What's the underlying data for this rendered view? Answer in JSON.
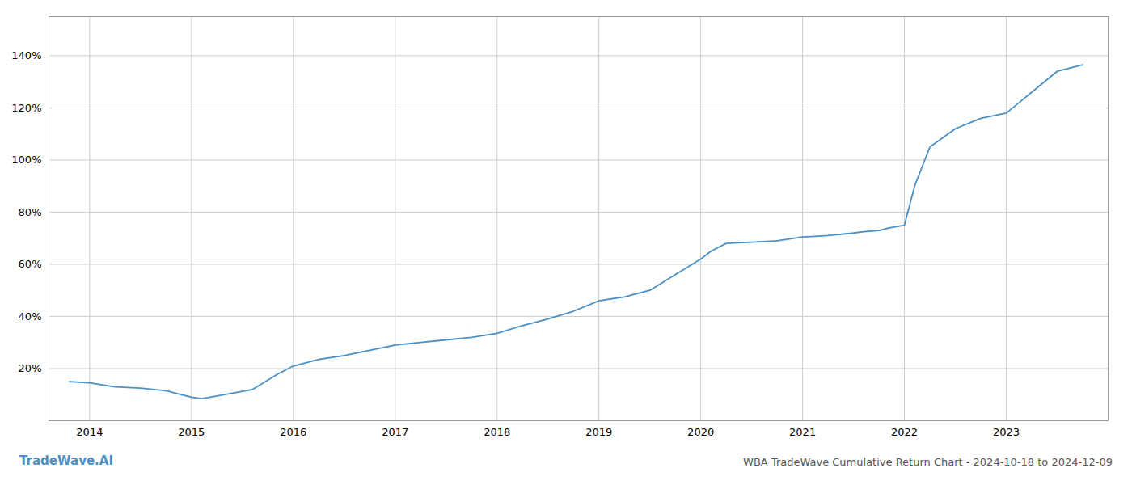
{
  "chart_data": {
    "type": "line",
    "title": "WBA TradeWave Cumulative Return Chart - 2024-10-18 to 2024-12-09",
    "annotations": [
      "TradeWave.AI"
    ],
    "x": [
      2013.8,
      2014.0,
      2014.25,
      2014.5,
      2014.75,
      2015.0,
      2015.1,
      2015.25,
      2015.6,
      2015.85,
      2016.0,
      2016.25,
      2016.5,
      2016.75,
      2017.0,
      2017.25,
      2017.5,
      2017.75,
      2018.0,
      2018.25,
      2018.5,
      2018.75,
      2019.0,
      2019.25,
      2019.5,
      2019.75,
      2020.0,
      2020.1,
      2020.25,
      2020.5,
      2020.75,
      2021.0,
      2021.25,
      2021.5,
      2021.6,
      2021.75,
      2021.85,
      2022.0,
      2022.1,
      2022.25,
      2022.5,
      2022.75,
      2023.0,
      2023.25,
      2023.5,
      2023.75
    ],
    "values": [
      15.0,
      14.5,
      13.0,
      12.5,
      11.5,
      9.0,
      8.5,
      9.5,
      12.0,
      18.0,
      21.0,
      23.5,
      25.0,
      27.0,
      29.0,
      30.0,
      31.0,
      32.0,
      33.5,
      36.5,
      39.0,
      42.0,
      46.0,
      47.5,
      50.0,
      56.0,
      62.0,
      65.0,
      68.0,
      68.5,
      69.0,
      70.5,
      71.0,
      72.0,
      72.5,
      73.0,
      74.0,
      75.0,
      90.0,
      105.0,
      112.0,
      116.0,
      118.0,
      126.0,
      134.0,
      136.5
    ],
    "color": "#4a90c4",
    "xlim": [
      2013.6,
      2024.0
    ],
    "ylim": [
      0,
      155
    ],
    "xticks": [
      2014,
      2015,
      2016,
      2017,
      2018,
      2019,
      2020,
      2021,
      2022,
      2023
    ],
    "yticks": [
      {
        "value": 20,
        "label": "20%"
      },
      {
        "value": 40,
        "label": "40%"
      },
      {
        "value": 60,
        "label": "60%"
      },
      {
        "value": 80,
        "label": "80%"
      },
      {
        "value": 100,
        "label": "100%"
      },
      {
        "value": 120,
        "label": "120%"
      },
      {
        "value": 140,
        "label": "140%"
      }
    ],
    "grid": true
  }
}
